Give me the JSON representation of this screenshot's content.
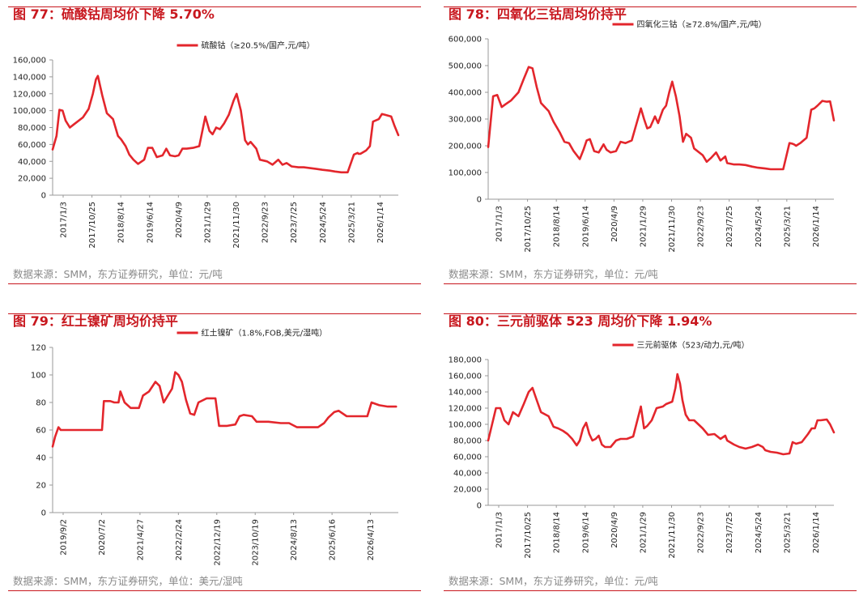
{
  "colors": {
    "accent": "#c8171e",
    "line": "#e3262c",
    "axis": "#999999",
    "text": "#222222",
    "source": "#8a8a8a"
  },
  "charts": [
    {
      "title": "图 77：硫酸钴周均价下降 5.70%",
      "source": "数据来源：SMM，东方证券研究，单位：元/吨",
      "chart_data": {
        "type": "line",
        "title": "图 77：硫酸钴周均价下降 5.70%",
        "x_range": [
          "2017/1/3",
          "2026/3/24"
        ],
        "ylim": [
          0,
          160000
        ],
        "yticks": [
          0,
          20000,
          40000,
          60000,
          80000,
          100000,
          120000,
          140000,
          160000
        ],
        "ytick_labels": [
          "0",
          "20,000",
          "40,000",
          "60,000",
          "80,000",
          "100,000",
          "120,000",
          "140,000",
          "160,000"
        ],
        "xtick_labels": [
          "2017/1/3",
          "2017/10/25",
          "2018/8/14",
          "2019/6/14",
          "2020/4/9",
          "2021/1/29",
          "2021/11/30",
          "2022/9/23",
          "2023/7/25",
          "2024/5/24",
          "2025/3/21",
          "2026/1/14"
        ],
        "grid": false,
        "legend": "top-center",
        "series": [
          {
            "name": "硫酸钴（≥20.5%/国产,元/吨）",
            "x": [
              "2017/1/3",
              "2017/2/10",
              "2017/3/10",
              "2017/4/10",
              "2017/5/10",
              "2017/6/20",
              "2017/8/1",
              "2017/10/25",
              "2017/12/20",
              "2018/1/30",
              "2018/3/1",
              "2018/3/20",
              "2018/5/1",
              "2018/6/15",
              "2018/8/14",
              "2018/10/1",
              "2018/11/1",
              "2018/12/15",
              "2019/1/20",
              "2019/3/1",
              "2019/4/15",
              "2019/6/14",
              "2019/7/20",
              "2019/9/1",
              "2019/10/15",
              "2019/12/10",
              "2020/1/15",
              "2020/2/20",
              "2020/4/9",
              "2020/5/15",
              "2020/6/20",
              "2020/8/1",
              "2020/10/1",
              "2020/12/1",
              "2021/1/29",
              "2021/3/10",
              "2021/4/10",
              "2021/5/15",
              "2021/6/20",
              "2021/8/1",
              "2021/9/15",
              "2021/11/1",
              "2021/11/30",
              "2022/1/10",
              "2022/2/20",
              "2022/3/20",
              "2022/4/15",
              "2022/6/10",
              "2022/7/15",
              "2022/9/23",
              "2022/11/15",
              "2023/1/10",
              "2023/2/20",
              "2023/4/1",
              "2023/5/20",
              "2023/7/25",
              "2023/9/15",
              "2023/11/15",
              "2024/1/15",
              "2024/3/15",
              "2024/5/24",
              "2024/7/15",
              "2024/9/15",
              "2024/11/15",
              "2025/1/15",
              "2025/2/20",
              "2025/3/1",
              "2025/3/21",
              "2025/5/15",
              "2025/6/20",
              "2025/7/20",
              "2025/9/15",
              "2025/10/15",
              "2025/11/15",
              "2026/1/14",
              "2026/2/15",
              "2026/3/24"
            ],
            "values": [
              54000,
              70000,
              101000,
              100000,
              88000,
              80000,
              84000,
              92000,
              102000,
              120000,
              137000,
              141000,
              118000,
              97000,
              90000,
              70000,
              66000,
              58000,
              48000,
              42000,
              37000,
              42000,
              56000,
              56000,
              45000,
              47000,
              55000,
              47000,
              46000,
              47000,
              55000,
              55000,
              56000,
              58000,
              93000,
              76000,
              72000,
              80000,
              78000,
              85000,
              95000,
              112000,
              120000,
              100000,
              65000,
              60000,
              63000,
              55000,
              42000,
              40000,
              36000,
              42000,
              36000,
              38000,
              34000,
              33000,
              33000,
              32000,
              31000,
              30000,
              29000,
              28000,
              27000,
              27000,
              48000,
              50000,
              49000,
              49000,
              53000,
              58000,
              87000,
              90000,
              96000,
              95000,
              93000,
              82000,
              71000
            ]
          }
        ]
      }
    },
    {
      "title": "图 78：四氧化三钴周均价持平",
      "source": "数据来源：SMM，东方证券研究，单位：元/吨",
      "chart_data": {
        "type": "line",
        "title": "图 78：四氧化三钴周均价持平",
        "x_range": [
          "2017/1/3",
          "2026/3/24"
        ],
        "ylim": [
          0,
          600000
        ],
        "yticks": [
          0,
          100000,
          200000,
          300000,
          400000,
          500000,
          600000
        ],
        "ytick_labels": [
          "0",
          "100,000",
          "200,000",
          "300,000",
          "400,000",
          "500,000",
          "600,000"
        ],
        "xtick_labels": [
          "2017/1/3",
          "2017/10/25",
          "2018/8/14",
          "2019/6/14",
          "2020/4/9",
          "2021/1/29",
          "2021/11/30",
          "2022/9/23",
          "2023/7/25",
          "2024/5/24",
          "2025/3/21",
          "2026/1/14"
        ],
        "grid": false,
        "legend": "top-center",
        "series": [
          {
            "name": "四氧化三钴（≥72.8%/国产,元/吨）",
            "x": [
              "2017/1/3",
              "2017/2/20",
              "2017/4/1",
              "2017/5/15",
              "2017/6/20",
              "2017/8/15",
              "2017/10/25",
              "2017/12/15",
              "2018/2/1",
              "2018/3/10",
              "2018/4/20",
              "2018/6/1",
              "2018/8/14",
              "2018/10/1",
              "2018/12/1",
              "2019/1/15",
              "2019/3/1",
              "2019/4/15",
              "2019/6/14",
              "2019/7/20",
              "2019/8/20",
              "2019/9/20",
              "2019/11/1",
              "2019/12/15",
              "2020/2/1",
              "2020/3/1",
              "2020/4/9",
              "2020/6/1",
              "2020/7/15",
              "2020/9/1",
              "2020/11/1",
              "2021/1/29",
              "2021/3/1",
              "2021/4/1",
              "2021/5/1",
              "2021/6/15",
              "2021/7/15",
              "2021/9/1",
              "2021/10/1",
              "2021/11/1",
              "2021/11/30",
              "2022/1/5",
              "2022/2/10",
              "2022/3/15",
              "2022/4/15",
              "2022/6/1",
              "2022/7/1",
              "2022/9/23",
              "2022/11/1",
              "2022/12/15",
              "2023/2/1",
              "2023/3/15",
              "2023/5/1",
              "2023/5/20",
              "2023/7/25",
              "2023/9/15",
              "2023/11/15",
              "2024/1/15",
              "2024/3/15",
              "2024/5/24",
              "2024/7/15",
              "2024/9/15",
              "2024/11/15",
              "2025/1/15",
              "2025/2/10",
              "2025/3/1",
              "2025/3/21",
              "2025/5/1",
              "2025/7/1",
              "2025/8/15",
              "2025/9/15",
              "2025/10/15",
              "2025/12/1",
              "2026/1/14",
              "2026/2/15",
              "2026/3/1",
              "2026/3/24"
            ],
            "values": [
              195000,
              385000,
              390000,
              345000,
              355000,
              370000,
              400000,
              450000,
              495000,
              490000,
              420000,
              360000,
              330000,
              290000,
              250000,
              215000,
              210000,
              180000,
              150000,
              185000,
              220000,
              225000,
              180000,
              175000,
              205000,
              185000,
              175000,
              180000,
              215000,
              210000,
              220000,
              340000,
              300000,
              265000,
              270000,
              310000,
              285000,
              335000,
              350000,
              400000,
              440000,
              385000,
              310000,
              215000,
              245000,
              230000,
              190000,
              165000,
              140000,
              155000,
              175000,
              145000,
              160000,
              135000,
              130000,
              130000,
              128000,
              122000,
              118000,
              115000,
              112000,
              112000,
              112000,
              210000,
              208000,
              205000,
              200000,
              210000,
              230000,
              335000,
              340000,
              350000,
              368000,
              365000,
              366000,
              340000,
              295000
            ]
          }
        ]
      }
    },
    {
      "title": "图 79：红土镍矿周均价持平",
      "source": "数据来源：SMM，东方证券研究，单位：美元/湿吨",
      "chart_data": {
        "type": "line",
        "title": "图 79：红土镍矿周均价持平",
        "x_range": [
          "2019/9/2",
          "2026/9/1"
        ],
        "ylim": [
          0,
          120
        ],
        "yticks": [
          0,
          20,
          40,
          60,
          80,
          100,
          120
        ],
        "ytick_labels": [
          "0",
          "20",
          "40",
          "60",
          "80",
          "100",
          "120"
        ],
        "xtick_labels": [
          "2019/9/2",
          "2020/7/2",
          "2021/4/27",
          "2022/2/24",
          "2022/12/19",
          "2023/10/19",
          "2024/8/13",
          "2025/6/16",
          "2026/4/13"
        ],
        "grid": false,
        "legend": "top-center",
        "series": [
          {
            "name": "红土镍矿（1.8%,FOB,美元/湿吨）",
            "x": [
              "2019/9/2",
              "2019/9/20",
              "2019/10/15",
              "2019/11/1",
              "2020/1/1",
              "2020/4/1",
              "2020/6/1",
              "2020/9/1",
              "2020/9/15",
              "2020/11/1",
              "2020/12/1",
              "2021/1/1",
              "2021/1/15",
              "2021/2/15",
              "2021/4/1",
              "2021/4/27",
              "2021/6/1",
              "2021/7/1",
              "2021/8/15",
              "2021/10/1",
              "2021/11/1",
              "2021/12/1",
              "2022/1/1",
              "2022/2/1",
              "2022/2/24",
              "2022/3/20",
              "2022/4/15",
              "2022/5/15",
              "2022/6/15",
              "2022/7/15",
              "2022/8/15",
              "2022/10/15",
              "2022/12/19",
              "2023/1/15",
              "2023/3/15",
              "2023/5/15",
              "2023/6/15",
              "2023/7/15",
              "2023/9/15",
              "2023/10/19",
              "2024/1/15",
              "2024/4/15",
              "2024/6/15",
              "2024/8/13",
              "2024/11/15",
              "2025/1/15",
              "2025/3/1",
              "2025/4/1",
              "2025/5/15",
              "2025/6/16",
              "2025/8/15",
              "2025/10/15",
              "2025/12/15",
              "2026/1/15",
              "2026/2/15",
              "2026/4/13",
              "2026/6/15",
              "2026/8/15"
            ],
            "values": [
              48,
              55,
              62,
              60,
              60,
              60,
              60,
              60,
              81,
              81,
              80,
              80,
              88,
              80,
              76,
              76,
              76,
              85,
              88,
              95,
              92,
              80,
              85,
              90,
              102,
              100,
              95,
              82,
              72,
              71,
              80,
              83,
              83,
              63,
              63,
              64,
              70,
              71,
              70,
              66,
              66,
              65,
              65,
              62,
              62,
              62,
              65,
              69,
              73,
              74,
              70,
              70,
              70,
              70,
              80,
              78,
              77,
              77
            ]
          }
        ]
      }
    },
    {
      "title": "图 80：三元前驱体 523 周均价下降 1.94%",
      "source": "数据来源：SMM，东方证券研究，单位：元/吨",
      "chart_data": {
        "type": "line",
        "title": "图 80：三元前驱体 523 周均价下降 1.94%",
        "x_range": [
          "2017/1/3",
          "2026/3/24"
        ],
        "ylim": [
          0,
          180000
        ],
        "yticks": [
          0,
          20000,
          40000,
          60000,
          80000,
          100000,
          120000,
          140000,
          160000,
          180000
        ],
        "ytick_labels": [
          "0",
          "20,000",
          "40,000",
          "60,000",
          "80,000",
          "100,000",
          "120,000",
          "140,000",
          "160,000",
          "180,000"
        ],
        "xtick_labels": [
          "2017/1/3",
          "2017/10/25",
          "2018/8/14",
          "2019/6/14",
          "2020/4/9",
          "2021/1/29",
          "2021/11/30",
          "2022/9/23",
          "2023/7/25",
          "2024/5/24",
          "2025/3/21",
          "2026/1/14"
        ],
        "grid": false,
        "legend": "top-center",
        "series": [
          {
            "name": "三元前驱体（523/动力,元/吨）",
            "x": [
              "2017/1/3",
              "2017/2/10",
              "2017/3/20",
              "2017/5/1",
              "2017/6/10",
              "2017/7/20",
              "2017/9/1",
              "2017/10/25",
              "2017/12/15",
              "2018/2/1",
              "2018/3/10",
              "2018/4/20",
              "2018/6/1",
              "2018/8/14",
              "2018/10/1",
              "2018/11/15",
              "2019/1/1",
              "2019/2/15",
              "2019/4/1",
              "2019/5/15",
              "2019/6/14",
              "2019/7/15",
              "2019/8/15",
              "2019/9/15",
              "2019/10/15",
              "2019/11/15",
              "2019/12/15",
              "2020/1/15",
              "2020/2/15",
              "2020/4/9",
              "2020/6/1",
              "2020/7/15",
              "2020/9/15",
              "2020/11/15",
              "2021/1/29",
              "2021/3/1",
              "2021/4/1",
              "2021/5/15",
              "2021/7/1",
              "2021/9/1",
              "2021/10/1",
              "2021/11/30",
              "2022/1/1",
              "2022/1/20",
              "2022/2/15",
              "2022/3/10",
              "2022/4/10",
              "2022/5/15",
              "2022/7/1",
              "2022/9/23",
              "2022/11/15",
              "2023/1/15",
              "2023/3/15",
              "2023/5/1",
              "2023/5/20",
              "2023/7/25",
              "2023/9/15",
              "2023/11/15",
              "2024/1/15",
              "2024/3/15",
              "2024/5/1",
              "2024/5/24",
              "2024/7/15",
              "2024/9/15",
              "2024/11/15",
              "2025/1/15",
              "2025/2/15",
              "2025/3/21",
              "2025/5/15",
              "2025/7/15",
              "2025/8/20",
              "2025/9/20",
              "2025/10/15",
              "2025/11/15",
              "2026/1/14",
              "2026/2/15",
              "2026/3/24"
            ],
            "values": [
              80000,
              100000,
              120000,
              120000,
              105000,
              100000,
              115000,
              110000,
              125000,
              140000,
              145000,
              130000,
              115000,
              110000,
              97000,
              95000,
              92000,
              88000,
              82000,
              74000,
              80000,
              95000,
              102000,
              88000,
              80000,
              82000,
              86000,
              75000,
              72000,
              72000,
              80000,
              82000,
              82000,
              85000,
              122000,
              95000,
              98000,
              105000,
              120000,
              122000,
              125000,
              128000,
              145000,
              162000,
              150000,
              130000,
              112000,
              105000,
              105000,
              95000,
              87000,
              88000,
              82000,
              86000,
              80000,
              75000,
              72000,
              70000,
              72000,
              75000,
              72000,
              68000,
              66000,
              65000,
              63000,
              64000,
              78000,
              76000,
              78000,
              88000,
              95000,
              95000,
              105000,
              105000,
              106000,
              100000,
              90000
            ]
          }
        ]
      }
    }
  ]
}
